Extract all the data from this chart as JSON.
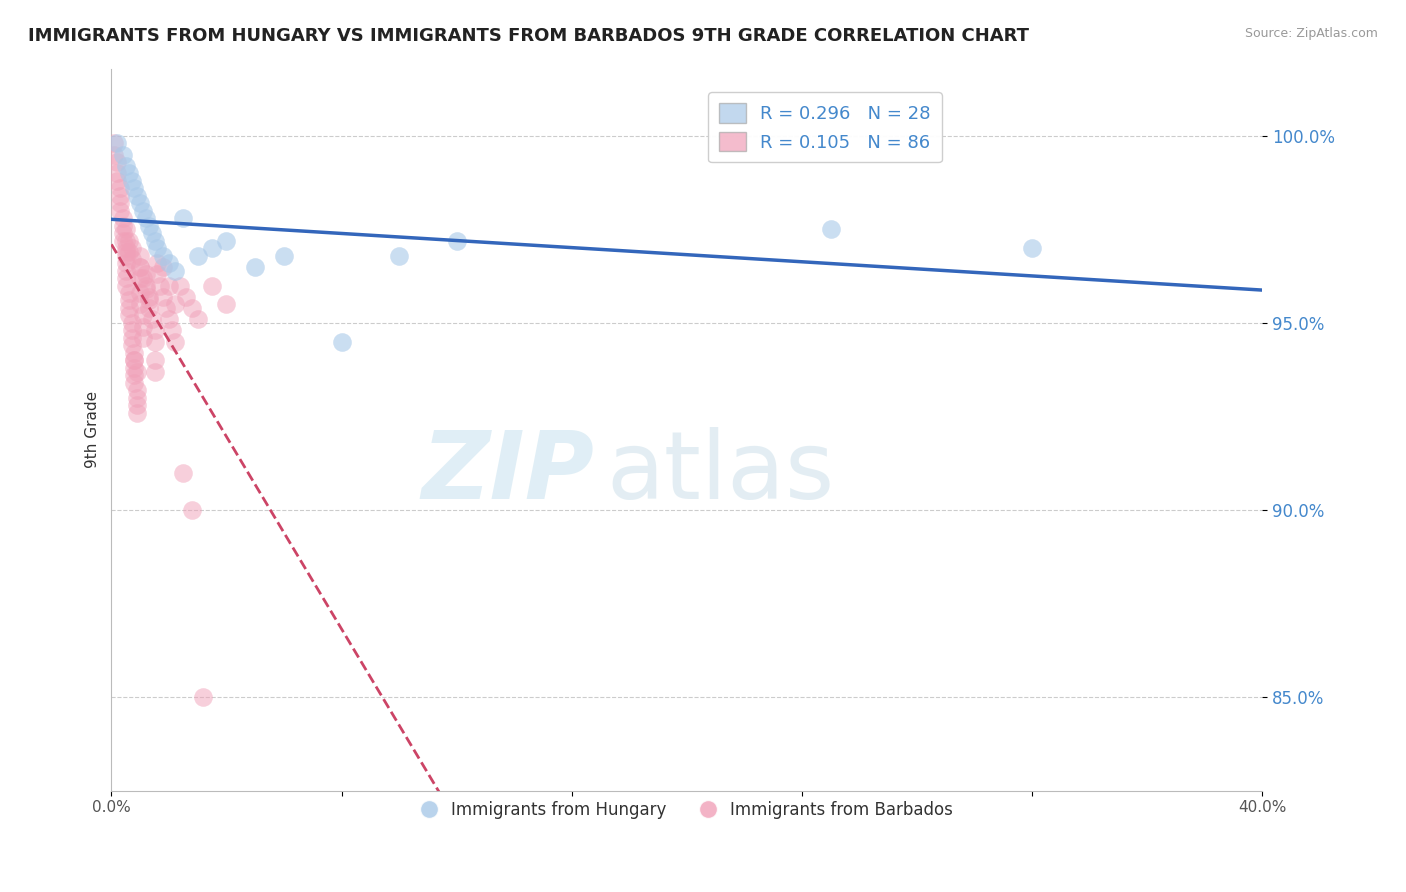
{
  "title": "IMMIGRANTS FROM HUNGARY VS IMMIGRANTS FROM BARBADOS 9TH GRADE CORRELATION CHART",
  "source": "Source: ZipAtlas.com",
  "ylabel": "9th Grade",
  "ytick_labels": [
    "100.0%",
    "95.0%",
    "90.0%",
    "85.0%"
  ],
  "ytick_values": [
    1.0,
    0.95,
    0.9,
    0.85
  ],
  "xlim": [
    0.0,
    0.4
  ],
  "ylim": [
    0.825,
    1.018
  ],
  "legend_labels": [
    "Immigrants from Hungary",
    "Immigrants from Barbados"
  ],
  "hungary_color": "#a8c8e8",
  "barbados_color": "#f0a0b8",
  "trendline_hungary_color": "#3366bb",
  "trendline_barbados_color": "#cc4466",
  "hungary_R": 0.296,
  "barbados_R": 0.105,
  "hungary_N": 28,
  "barbados_N": 86,
  "hungary_scatter_x": [
    0.002,
    0.004,
    0.005,
    0.006,
    0.007,
    0.008,
    0.009,
    0.01,
    0.011,
    0.012,
    0.013,
    0.014,
    0.015,
    0.016,
    0.018,
    0.02,
    0.022,
    0.025,
    0.03,
    0.035,
    0.04,
    0.05,
    0.06,
    0.08,
    0.1,
    0.12,
    0.25,
    0.32
  ],
  "hungary_scatter_y": [
    0.998,
    0.995,
    0.992,
    0.99,
    0.988,
    0.986,
    0.984,
    0.982,
    0.98,
    0.978,
    0.976,
    0.974,
    0.972,
    0.97,
    0.968,
    0.966,
    0.964,
    0.978,
    0.968,
    0.97,
    0.972,
    0.965,
    0.968,
    0.945,
    0.968,
    0.972,
    0.975,
    0.97
  ],
  "barbados_scatter_x": [
    0.001,
    0.001,
    0.002,
    0.002,
    0.002,
    0.003,
    0.003,
    0.003,
    0.003,
    0.004,
    0.004,
    0.004,
    0.004,
    0.005,
    0.005,
    0.005,
    0.005,
    0.005,
    0.005,
    0.006,
    0.006,
    0.006,
    0.006,
    0.007,
    0.007,
    0.007,
    0.007,
    0.008,
    0.008,
    0.008,
    0.008,
    0.008,
    0.009,
    0.009,
    0.009,
    0.009,
    0.01,
    0.01,
    0.01,
    0.01,
    0.01,
    0.011,
    0.011,
    0.011,
    0.012,
    0.012,
    0.013,
    0.013,
    0.014,
    0.015,
    0.015,
    0.016,
    0.016,
    0.017,
    0.018,
    0.019,
    0.02,
    0.021,
    0.022,
    0.024,
    0.026,
    0.028,
    0.03,
    0.035,
    0.04,
    0.005,
    0.005,
    0.005,
    0.006,
    0.006,
    0.007,
    0.007,
    0.008,
    0.009,
    0.01,
    0.011,
    0.012,
    0.013,
    0.015,
    0.015,
    0.018,
    0.02,
    0.022,
    0.025,
    0.028,
    0.032
  ],
  "barbados_scatter_y": [
    0.998,
    0.995,
    0.993,
    0.99,
    0.988,
    0.986,
    0.984,
    0.982,
    0.98,
    0.978,
    0.976,
    0.974,
    0.972,
    0.97,
    0.968,
    0.966,
    0.964,
    0.962,
    0.96,
    0.958,
    0.956,
    0.954,
    0.952,
    0.95,
    0.948,
    0.946,
    0.944,
    0.942,
    0.94,
    0.938,
    0.936,
    0.934,
    0.932,
    0.93,
    0.928,
    0.926,
    0.968,
    0.965,
    0.962,
    0.958,
    0.955,
    0.952,
    0.949,
    0.946,
    0.963,
    0.96,
    0.957,
    0.954,
    0.951,
    0.948,
    0.945,
    0.966,
    0.963,
    0.96,
    0.957,
    0.954,
    0.951,
    0.948,
    0.945,
    0.96,
    0.957,
    0.954,
    0.951,
    0.96,
    0.955,
    0.975,
    0.972,
    0.969,
    0.972,
    0.969,
    0.97,
    0.967,
    0.94,
    0.937,
    0.965,
    0.962,
    0.959,
    0.956,
    0.94,
    0.937,
    0.965,
    0.96,
    0.955,
    0.91,
    0.9,
    0.85
  ],
  "watermark_zip": "ZIP",
  "watermark_atlas": "atlas",
  "background_color": "#ffffff",
  "grid_color": "#cccccc"
}
